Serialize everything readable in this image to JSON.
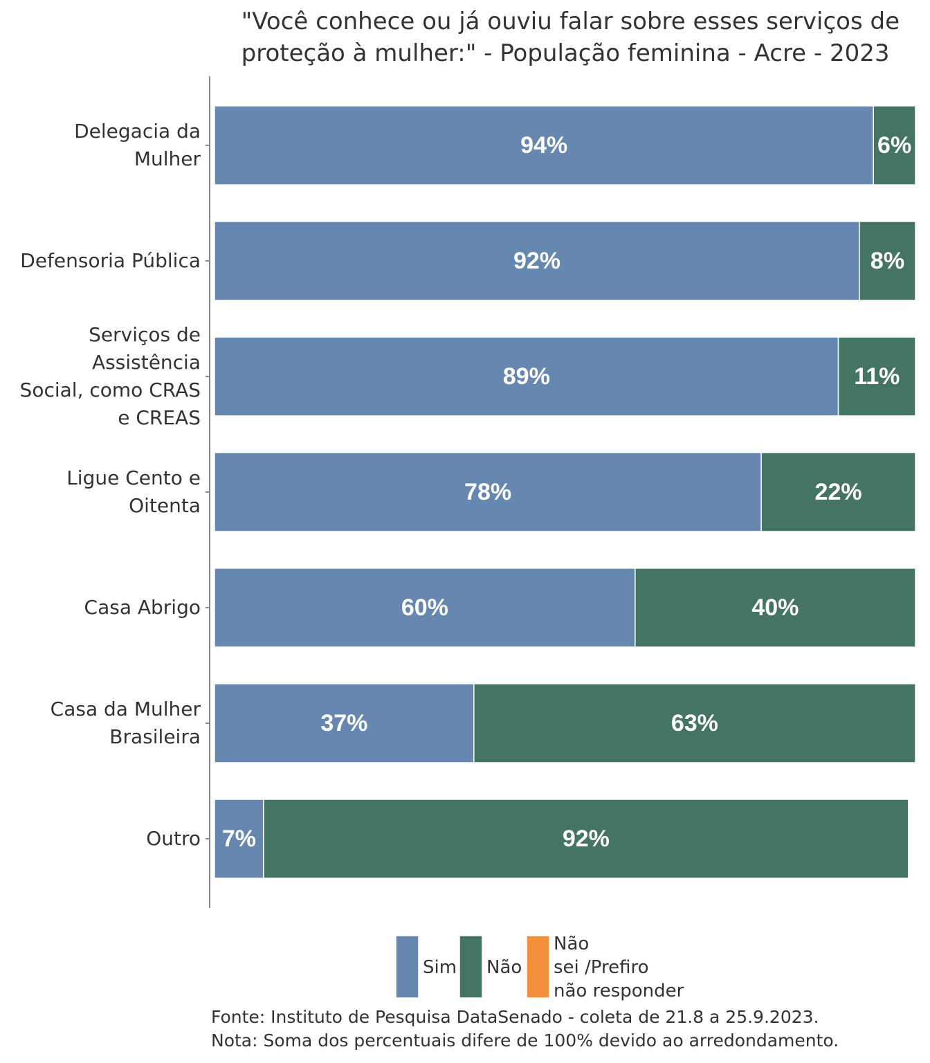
{
  "chart_data": {
    "type": "stacked-bar-horizontal",
    "title": "\"Você conhece ou já ouviu falar sobre esses serviços de\nproteção à mulher:\" - População feminina - Acre - 2023",
    "categories": [
      "Delegacia da\nMulher",
      "Defensoria Pública",
      "Serviços de\nAssistência\nSocial, como CRAS\ne CREAS",
      "Ligue Cento e\nOitenta",
      "Casa Abrigo",
      "Casa da Mulher\nBrasileira",
      "Outro"
    ],
    "series": [
      {
        "name": "Sim",
        "color": "#6688b0",
        "values": [
          94,
          92,
          89,
          78,
          60,
          37,
          7
        ],
        "value_labels": [
          "94%",
          "92%",
          "89%",
          "78%",
          "60%",
          "37%",
          "7%"
        ]
      },
      {
        "name": "Não",
        "color": "#447563",
        "values": [
          6,
          8,
          11,
          22,
          40,
          63,
          92
        ],
        "value_labels": [
          "6%",
          "8%",
          "11%",
          "22%",
          "40%",
          "63%",
          "92%"
        ]
      },
      {
        "name": "Não\nsei /Prefiro\nnão responder",
        "color": "#f68f3c",
        "values": [
          0,
          0,
          0,
          0,
          0,
          0,
          0
        ]
      }
    ],
    "xlim": [
      0,
      100
    ],
    "notes": [
      "Fonte: Instituto de Pesquisa DataSenado - coleta de 21.8 a 25.9.2023.",
      "Nota: Soma dos percentuais difere de 100% devido ao arredondamento."
    ]
  }
}
